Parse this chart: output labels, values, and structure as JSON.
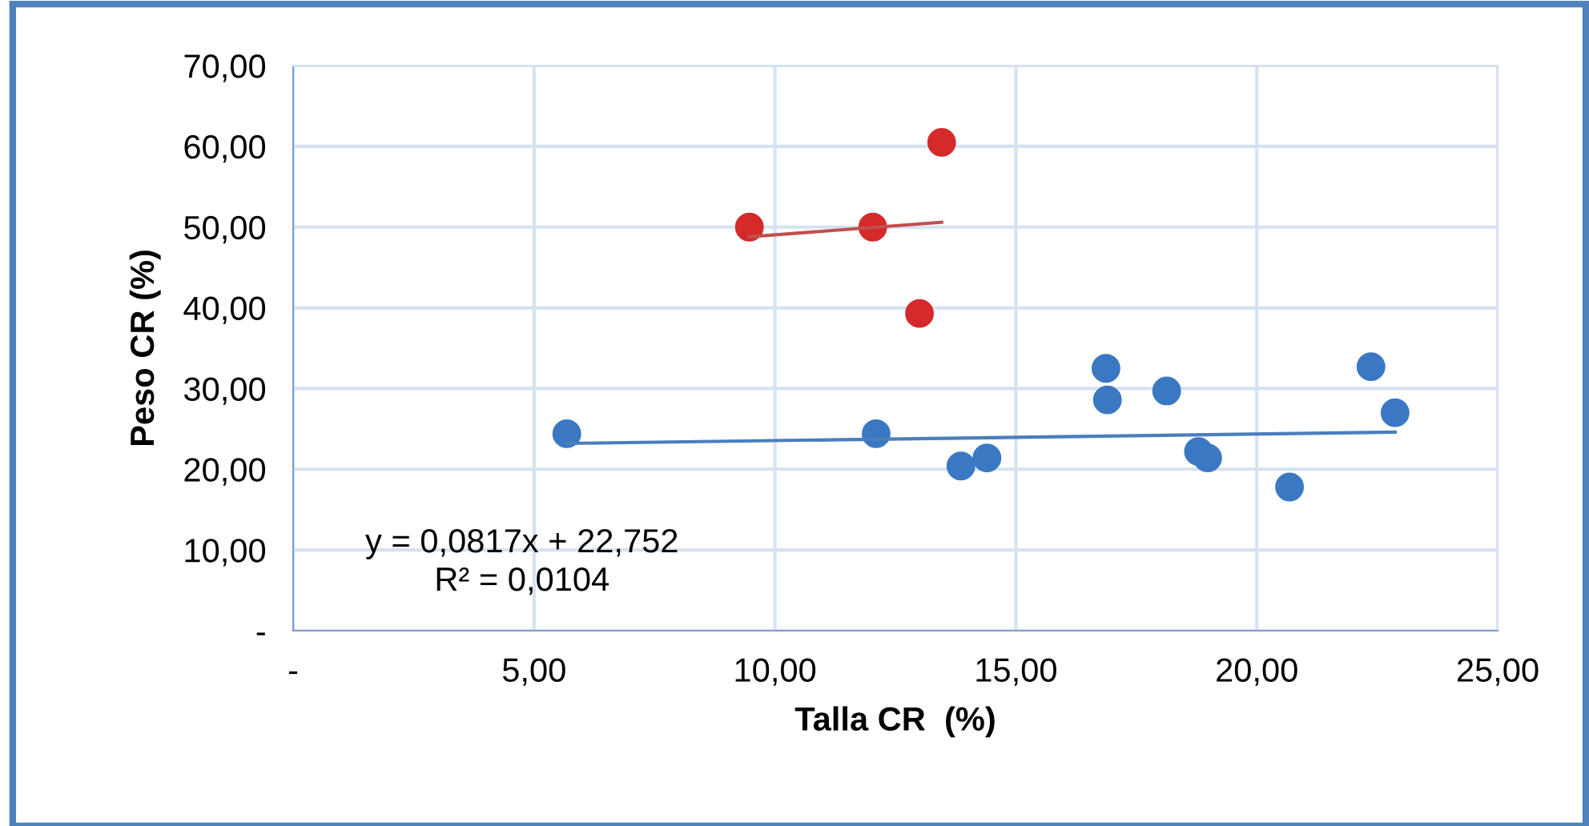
{
  "chart_data": {
    "type": "scatter",
    "xlabel": "Talla CR  (%)",
    "ylabel": "Peso CR (%)",
    "series": [
      {
        "marker": "circle",
        "color": "#d42a2a",
        "x": [
          9.47,
          12.03,
          13.46,
          13.0
        ],
        "values": [
          50.0,
          50.0,
          60.5,
          39.3
        ]
      },
      {
        "marker": "circle",
        "color": "#3a78c3",
        "x": [
          5.68,
          12.1,
          13.86,
          14.4,
          16.87,
          16.9,
          18.13,
          18.79,
          18.98,
          20.68,
          22.37,
          22.87
        ],
        "values": [
          24.4,
          24.4,
          20.4,
          21.4,
          32.5,
          28.6,
          29.7,
          22.2,
          21.4,
          17.8,
          32.7,
          27.0
        ]
      },
      {
        "type": "line",
        "color": "#c0504d",
        "x": [
          9.47,
          13.46
        ],
        "values": [
          48.8,
          50.6
        ]
      },
      {
        "type": "line",
        "color": "#4a7ebb",
        "x": [
          5.68,
          22.87
        ],
        "values": [
          23.2,
          24.6
        ]
      }
    ],
    "annotations": [
      "y = 0,0817x + 22,752\nR² = 0,0104"
    ],
    "xlim": [
      0,
      25
    ],
    "xticks": [
      {
        "value": 0,
        "label": "-"
      },
      {
        "value": 5,
        "label": "5,00"
      },
      {
        "value": 10,
        "label": "10,00"
      },
      {
        "value": 15,
        "label": "15,00"
      },
      {
        "value": 20,
        "label": "20,00"
      },
      {
        "value": 25,
        "label": "25,00"
      }
    ],
    "ylim": [
      0,
      70
    ],
    "yticks": [
      {
        "value": 0,
        "label": "-"
      },
      {
        "value": 10,
        "label": "10,00"
      },
      {
        "value": 20,
        "label": "20,00"
      },
      {
        "value": 30,
        "label": "30,00"
      },
      {
        "value": 40,
        "label": "40,00"
      },
      {
        "value": 50,
        "label": "50,00"
      },
      {
        "value": 60,
        "label": "60,00"
      },
      {
        "value": 70,
        "label": "70,00"
      }
    ],
    "grid": true
  }
}
